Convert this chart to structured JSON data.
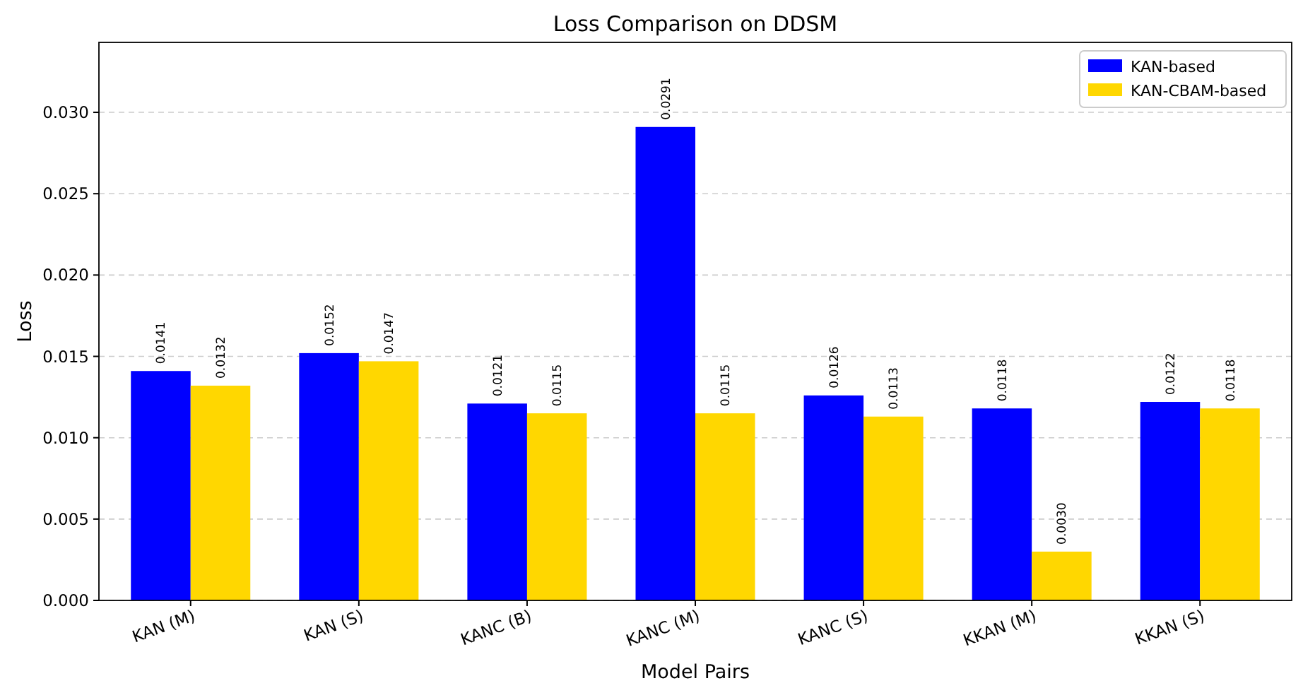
{
  "chart_data": {
    "type": "bar",
    "title": "Loss Comparison on DDSM",
    "xlabel": "Model Pairs",
    "ylabel": "Loss",
    "categories": [
      "KAN (M)",
      "KAN (S)",
      "KANC (B)",
      "KANC (M)",
      "KANC (S)",
      "KKAN (M)",
      "KKAN (S)"
    ],
    "series": [
      {
        "name": "KAN-based",
        "color": "#0000ff",
        "values": [
          0.0141,
          0.0152,
          0.0121,
          0.0291,
          0.0126,
          0.0118,
          0.0122
        ],
        "value_labels": [
          "0.0141",
          "0.0152",
          "0.0121",
          "0.0291",
          "0.0126",
          "0.0118",
          "0.0122"
        ]
      },
      {
        "name": "KAN-CBAM-based",
        "color": "#ffd700",
        "values": [
          0.0132,
          0.0147,
          0.0115,
          0.0115,
          0.0113,
          0.003,
          0.0118
        ],
        "value_labels": [
          "0.0132",
          "0.0147",
          "0.0115",
          "0.0115",
          "0.0113",
          "0.0030",
          "0.0118"
        ]
      }
    ],
    "ylim": [
      0,
      0.0343
    ],
    "yticks": [
      {
        "value": 0,
        "label": "0.000"
      },
      {
        "value": 0.005,
        "label": "0.005"
      },
      {
        "value": 0.01,
        "label": "0.010"
      },
      {
        "value": 0.015,
        "label": "0.015"
      },
      {
        "value": 0.02,
        "label": "0.020"
      },
      {
        "value": 0.025,
        "label": "0.025"
      },
      {
        "value": 0.03,
        "label": "0.030"
      }
    ],
    "grid": "y",
    "legend": "top right"
  }
}
